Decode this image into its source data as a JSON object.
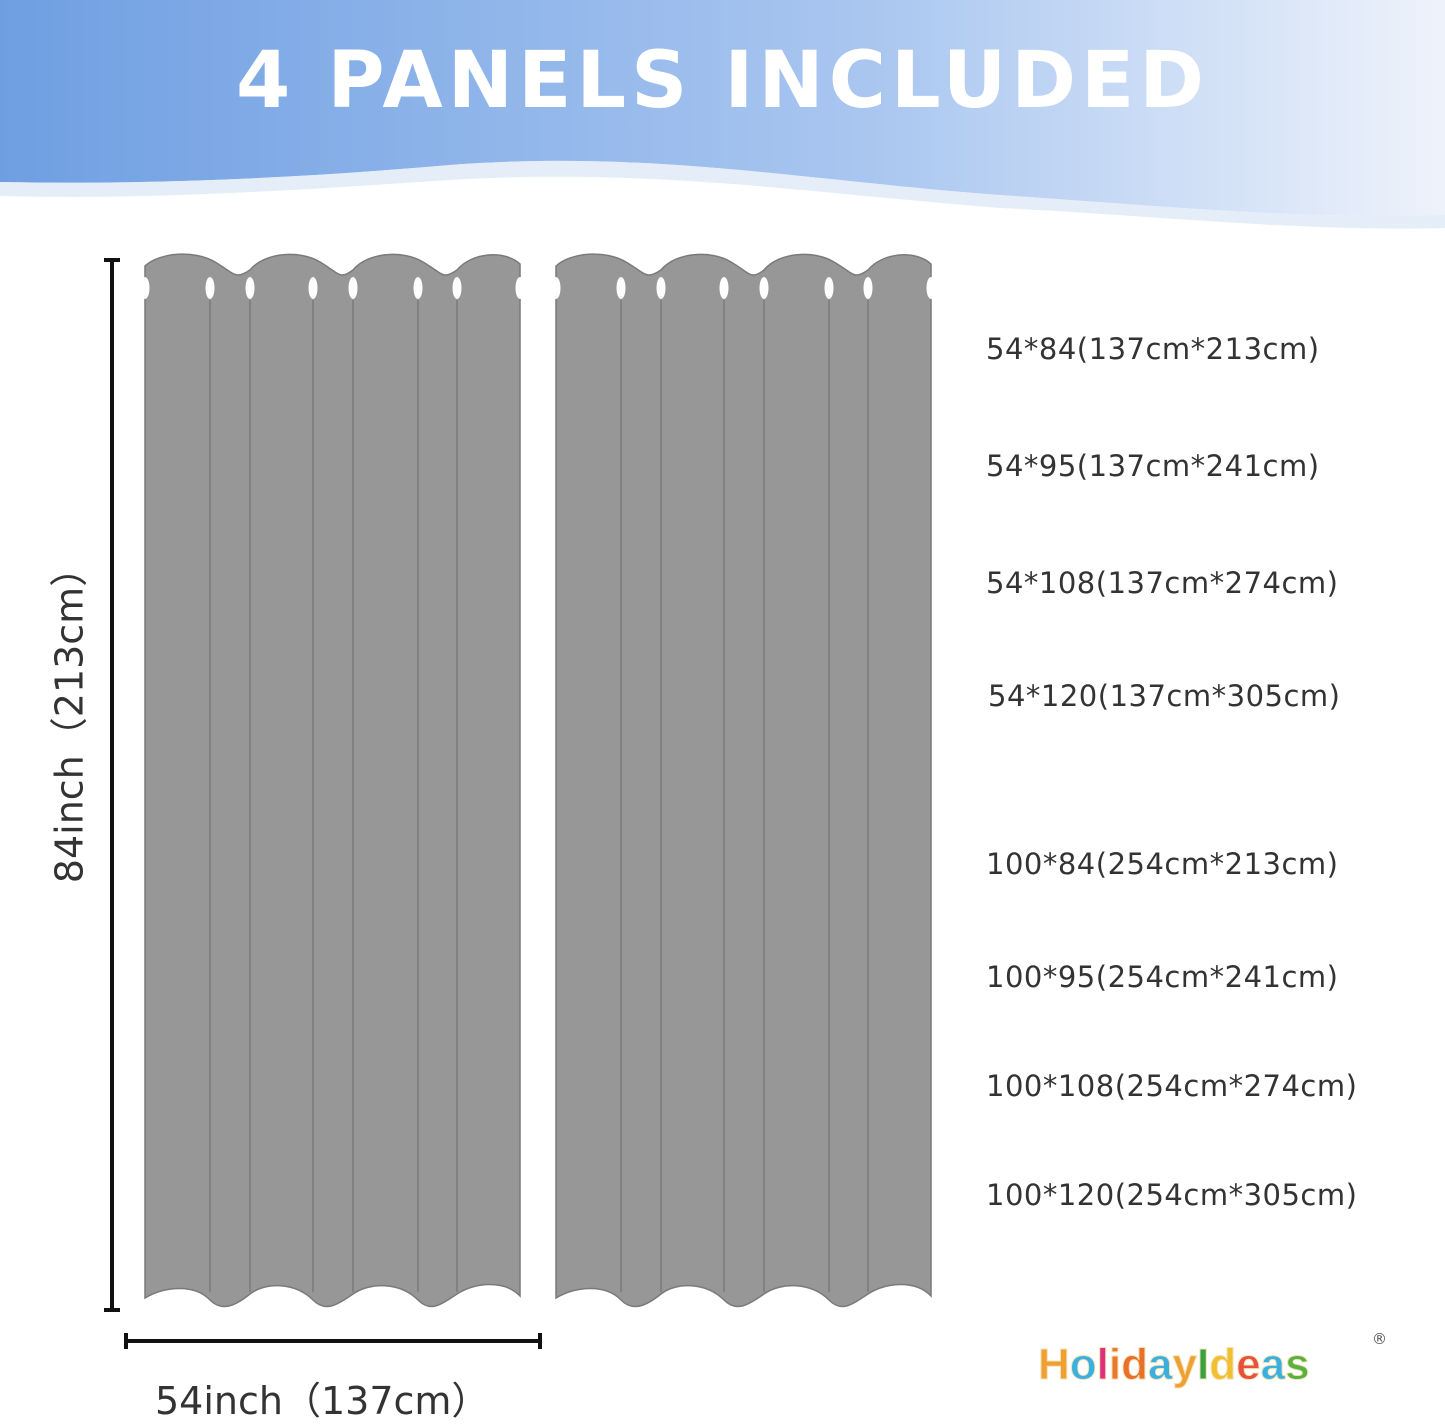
{
  "header": {
    "title": "4 PANELS INCLUDED"
  },
  "dimensions": {
    "height_label": "84inch（213cm）",
    "width_label": "54inch（137cm）"
  },
  "sizes": [
    "54*84(137cm*213cm)",
    "54*95(137cm*241cm)",
    "54*108(137cm*274cm)",
    "54*120(137cm*305cm)",
    "100*84(254cm*213cm)",
    "100*95(254cm*241cm)",
    "100*108(254cm*274cm)",
    "100*120(254cm*305cm)"
  ],
  "brand": {
    "logo_text": "HolidayIdeas",
    "registered": "®"
  },
  "colors": {
    "banner_left": "#6f9fe2",
    "banner_right": "#eef3fb",
    "curtain": "#979797",
    "curtain_line": "#7a7a7a"
  }
}
